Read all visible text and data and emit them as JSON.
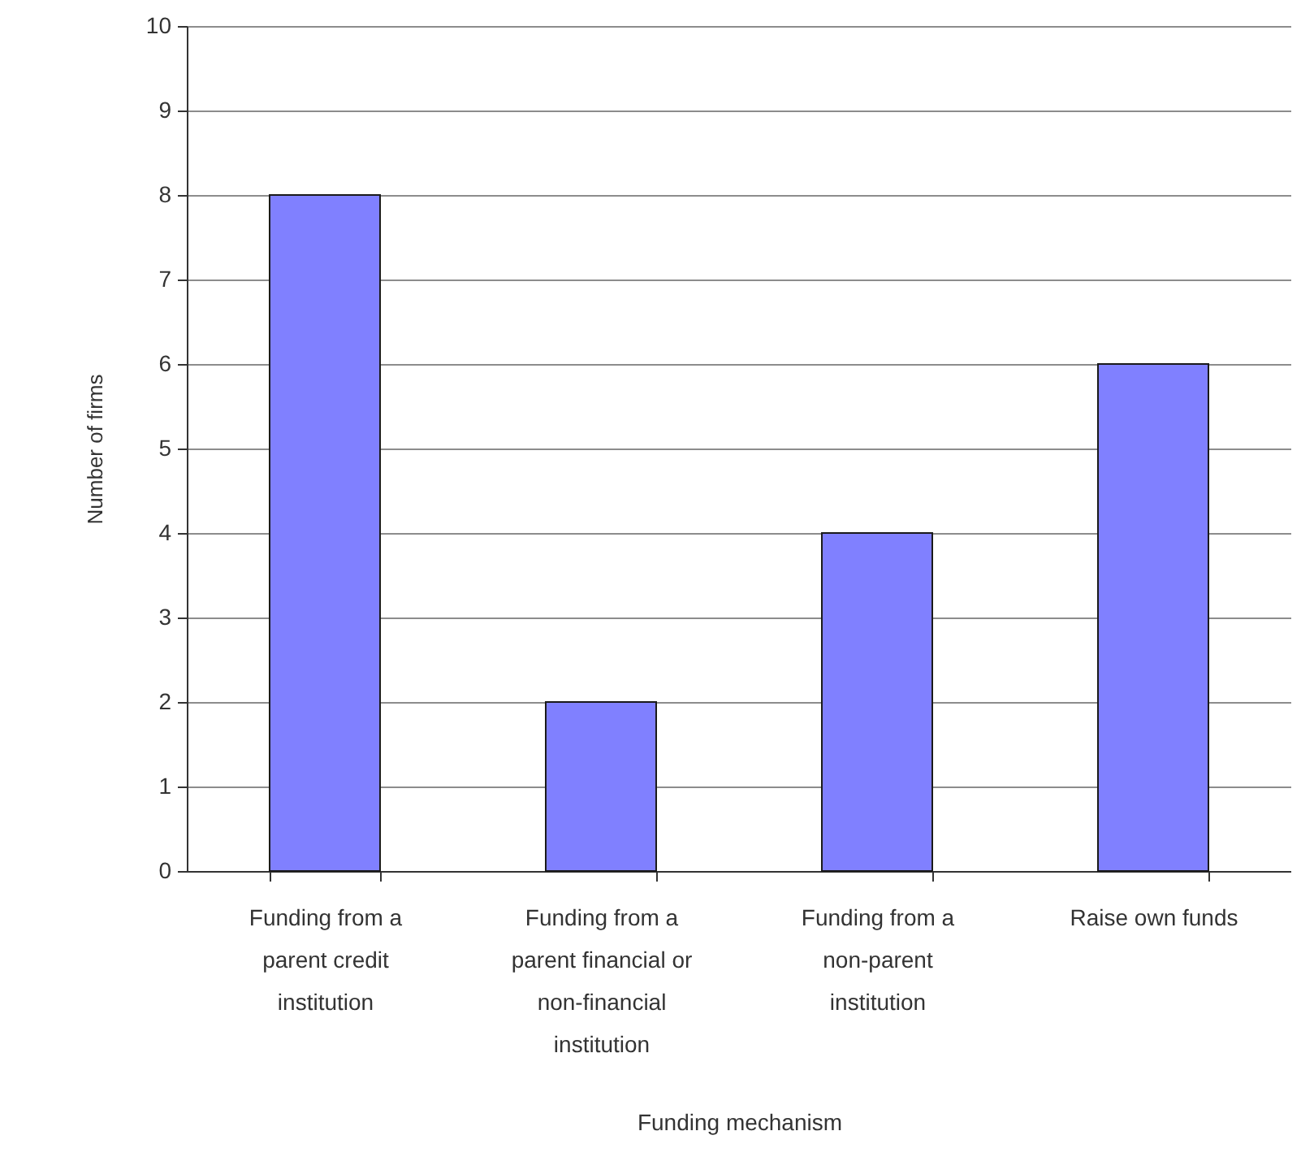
{
  "chart_data": {
    "type": "bar",
    "xlabel": "Funding mechanism",
    "ylabel": "Number of firms",
    "categories": [
      "Funding from a parent credit institution",
      "Funding from a parent financial or non-financial institution",
      "Funding from a non-parent institution",
      "Raise own funds"
    ],
    "values": [
      8,
      2,
      4,
      6
    ],
    "color": "#8080ff",
    "ylim": [
      0,
      10
    ],
    "yticks": [
      0,
      1,
      2,
      3,
      4,
      5,
      6,
      7,
      8,
      9,
      10
    ],
    "grid": "y"
  }
}
